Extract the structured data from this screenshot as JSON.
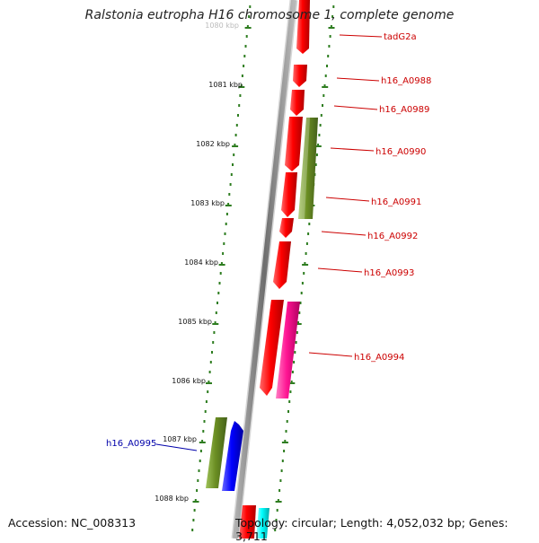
{
  "title": "Ralstonia eutropha H16 chromosome 1, complete genome",
  "footer": {
    "accession": "Accession: NC_008313",
    "summary": "Topology: circular; Length: 4,052,032 bp; Genes: 3,711"
  },
  "colors": {
    "backbone": "#808080",
    "tick": "#2e7d20",
    "feature_red": "#ff0000",
    "feature_pink": "#ff1493",
    "feature_olive": "#6b8e23",
    "feature_blue": "#0000ff",
    "feature_cyan": "#00ffff",
    "label_red": "#cc0000",
    "label_blue": "#0000aa"
  },
  "scale_labels": [
    "1080 kbp",
    "1081 kbp",
    "1082 kbp",
    "1083 kbp",
    "1084 kbp",
    "1085 kbp",
    "1086 kbp",
    "1087 kbp",
    "1088 kbp"
  ],
  "gene_labels": [
    {
      "text": "tadG2a",
      "color": "red"
    },
    {
      "text": "h16_A0988",
      "color": "red"
    },
    {
      "text": "h16_A0989",
      "color": "red"
    },
    {
      "text": "h16_A0990",
      "color": "red"
    },
    {
      "text": "h16_A0991",
      "color": "red"
    },
    {
      "text": "h16_A0992",
      "color": "red"
    },
    {
      "text": "h16_A0993",
      "color": "red"
    },
    {
      "text": "h16_A0994",
      "color": "red"
    },
    {
      "text": "h16_A0995",
      "color": "blue"
    }
  ]
}
